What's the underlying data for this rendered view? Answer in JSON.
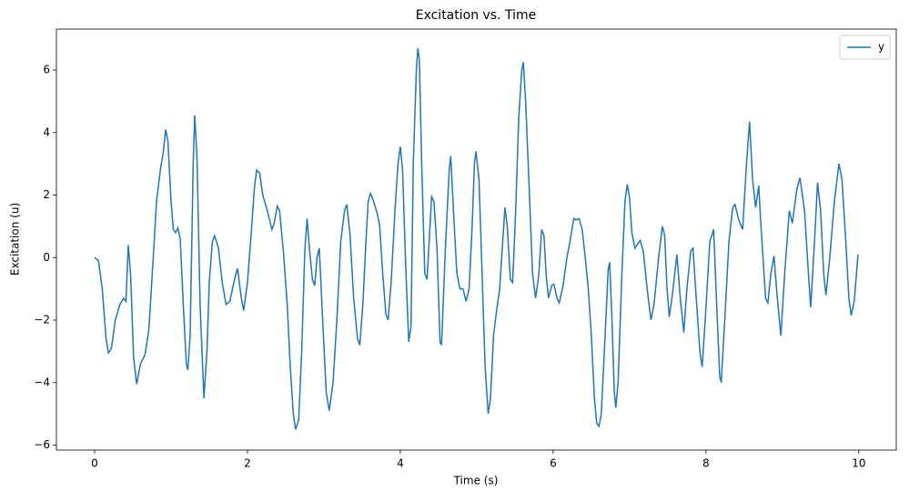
{
  "chart_data": {
    "type": "line",
    "title": "Excitation vs. Time",
    "x_label": "Time (s)",
    "y_label": "Excitation (u)",
    "x": [
      0,
      0.05,
      0.1,
      0.15,
      0.18,
      0.22,
      0.27,
      0.33,
      0.38,
      0.41,
      0.44,
      0.47,
      0.51,
      0.55,
      0.6,
      0.66,
      0.71,
      0.76,
      0.81,
      0.86,
      0.9,
      0.93,
      0.96,
      1.0,
      1.03,
      1.06,
      1.09,
      1.12,
      1.16,
      1.2,
      1.22,
      1.25,
      1.29,
      1.31,
      1.34,
      1.38,
      1.43,
      1.47,
      1.5,
      1.54,
      1.57,
      1.62,
      1.67,
      1.72,
      1.77,
      1.83,
      1.87,
      1.92,
      1.95,
      2.0,
      2.05,
      2.09,
      2.12,
      2.16,
      2.2,
      2.26,
      2.32,
      2.35,
      2.39,
      2.42,
      2.47,
      2.52,
      2.56,
      2.6,
      2.63,
      2.67,
      2.71,
      2.75,
      2.78,
      2.81,
      2.85,
      2.88,
      2.91,
      2.94,
      2.98,
      3.03,
      3.07,
      3.12,
      3.17,
      3.22,
      3.27,
      3.3,
      3.34,
      3.39,
      3.44,
      3.47,
      3.51,
      3.55,
      3.58,
      3.61,
      3.65,
      3.7,
      3.73,
      3.77,
      3.81,
      3.84,
      3.88,
      3.93,
      3.97,
      4.0,
      4.03,
      4.07,
      4.11,
      4.14,
      4.17,
      4.21,
      4.23,
      4.25,
      4.28,
      4.32,
      4.35,
      4.38,
      4.41,
      4.44,
      4.48,
      4.52,
      4.54,
      4.59,
      4.64,
      4.66,
      4.7,
      4.74,
      4.78,
      4.82,
      4.86,
      4.9,
      4.94,
      4.97,
      4.99,
      5.03,
      5.07,
      5.11,
      5.15,
      5.18,
      5.22,
      5.26,
      5.3,
      5.34,
      5.37,
      5.4,
      5.44,
      5.47,
      5.51,
      5.55,
      5.59,
      5.61,
      5.64,
      5.69,
      5.73,
      5.77,
      5.81,
      5.85,
      5.88,
      5.91,
      5.94,
      5.98,
      6.01,
      6.05,
      6.08,
      6.13,
      6.18,
      6.22,
      6.27,
      6.3,
      6.34,
      6.38,
      6.42,
      6.46,
      6.5,
      6.54,
      6.57,
      6.6,
      6.63,
      6.68,
      6.72,
      6.74,
      6.77,
      6.8,
      6.82,
      6.85,
      6.9,
      6.94,
      6.97,
      7.0,
      7.03,
      7.07,
      7.14,
      7.18,
      7.23,
      7.28,
      7.32,
      7.38,
      7.43,
      7.46,
      7.49,
      7.52,
      7.56,
      7.62,
      7.66,
      7.71,
      7.75,
      7.8,
      7.83,
      7.87,
      7.92,
      7.95,
      7.99,
      8.05,
      8.1,
      8.14,
      8.18,
      8.2,
      8.25,
      8.3,
      8.35,
      8.38,
      8.43,
      8.48,
      8.53,
      8.57,
      8.61,
      8.65,
      8.69,
      8.72,
      8.78,
      8.81,
      8.85,
      8.89,
      8.93,
      8.98,
      9.03,
      9.09,
      9.13,
      9.19,
      9.23,
      9.29,
      9.34,
      9.37,
      9.42,
      9.46,
      9.5,
      9.54,
      9.57,
      9.62,
      9.68,
      9.74,
      9.78,
      9.83,
      9.87,
      9.9,
      9.94,
      9.99
    ],
    "series": [
      {
        "name": "y",
        "color": "#1f77b4",
        "values": [
          0,
          -0.1,
          -1.0,
          -2.6,
          -3.05,
          -2.9,
          -2.0,
          -1.5,
          -1.3,
          -1.4,
          0.4,
          -0.5,
          -3.2,
          -4.05,
          -3.4,
          -3.1,
          -2.3,
          -0.3,
          1.8,
          2.8,
          3.4,
          4.1,
          3.7,
          1.8,
          0.9,
          0.8,
          0.95,
          0.6,
          -1.5,
          -3.4,
          -3.6,
          -2.5,
          3.0,
          4.55,
          3.2,
          -1.5,
          -4.5,
          -3.0,
          -0.8,
          0.5,
          0.7,
          0.3,
          -0.8,
          -1.5,
          -1.4,
          -0.7,
          -0.35,
          -1.3,
          -1.7,
          -0.8,
          0.8,
          2.2,
          2.8,
          2.7,
          2.0,
          1.5,
          0.9,
          1.1,
          1.65,
          1.5,
          0.2,
          -1.5,
          -3.5,
          -5.0,
          -5.5,
          -5.2,
          -3.0,
          0.2,
          1.25,
          0.3,
          -0.7,
          -0.9,
          0.0,
          0.3,
          -1.8,
          -4.3,
          -4.9,
          -4.0,
          -2.0,
          0.5,
          1.5,
          1.7,
          0.8,
          -1.3,
          -2.6,
          -2.8,
          -1.5,
          0.5,
          1.8,
          2.05,
          1.8,
          1.4,
          1.0,
          -0.5,
          -1.8,
          -2.0,
          -0.8,
          1.5,
          3.0,
          3.55,
          2.8,
          -0.2,
          -2.7,
          -2.2,
          3.0,
          6.0,
          6.7,
          6.3,
          3.0,
          -0.5,
          -0.7,
          0.6,
          1.95,
          1.8,
          0.3,
          -2.7,
          -2.8,
          0.3,
          2.8,
          3.25,
          1.3,
          -0.5,
          -1.0,
          -1.0,
          -1.4,
          -1.0,
          1.0,
          3.0,
          3.4,
          2.5,
          -0.5,
          -3.5,
          -5.0,
          -4.5,
          -2.5,
          -1.7,
          -1.0,
          0.5,
          1.6,
          1.0,
          -0.7,
          -0.8,
          1.5,
          4.5,
          6.0,
          6.25,
          5.0,
          2.0,
          -0.5,
          -1.3,
          -0.6,
          0.9,
          0.7,
          -0.6,
          -1.3,
          -0.9,
          -0.85,
          -1.3,
          -1.45,
          -0.9,
          0.0,
          0.5,
          1.25,
          1.2,
          1.25,
          0.9,
          0.0,
          -1.0,
          -2.5,
          -4.5,
          -5.3,
          -5.4,
          -5.0,
          -2.5,
          -0.4,
          -0.15,
          -2.0,
          -4.3,
          -4.8,
          -4.0,
          -0.5,
          1.8,
          2.35,
          1.9,
          0.8,
          0.3,
          0.55,
          0.2,
          -1.0,
          -2.0,
          -1.5,
          0.0,
          1.0,
          0.7,
          -1.0,
          -1.9,
          -1.2,
          0.1,
          -1.2,
          -2.4,
          -1.0,
          0.2,
          0.3,
          -1.2,
          -3.0,
          -3.5,
          -2.0,
          0.5,
          0.9,
          -1.5,
          -3.8,
          -4.0,
          -1.8,
          0.5,
          1.6,
          1.7,
          1.2,
          0.9,
          3.0,
          4.35,
          2.5,
          1.6,
          2.3,
          1.0,
          -1.3,
          -1.45,
          -0.5,
          0.05,
          -1.2,
          -2.5,
          -0.5,
          1.5,
          1.1,
          2.2,
          2.55,
          1.5,
          -0.5,
          -1.6,
          0.5,
          2.4,
          1.5,
          -0.5,
          -1.2,
          0.0,
          1.8,
          3.0,
          2.5,
          0.5,
          -1.3,
          -1.85,
          -1.4,
          0.1
        ]
      }
    ],
    "xlim": [
      -0.5,
      10.49
    ],
    "ylim": [
      -6.16,
      7.31
    ],
    "xticks": [
      0,
      2,
      4,
      6,
      8,
      10
    ],
    "yticks": [
      {
        "value": -6,
        "label": "−6"
      },
      {
        "value": -4,
        "label": "−4"
      },
      {
        "value": -2,
        "label": "−2"
      },
      0,
      2,
      4,
      6
    ],
    "grid": false,
    "legend": "upper right"
  }
}
